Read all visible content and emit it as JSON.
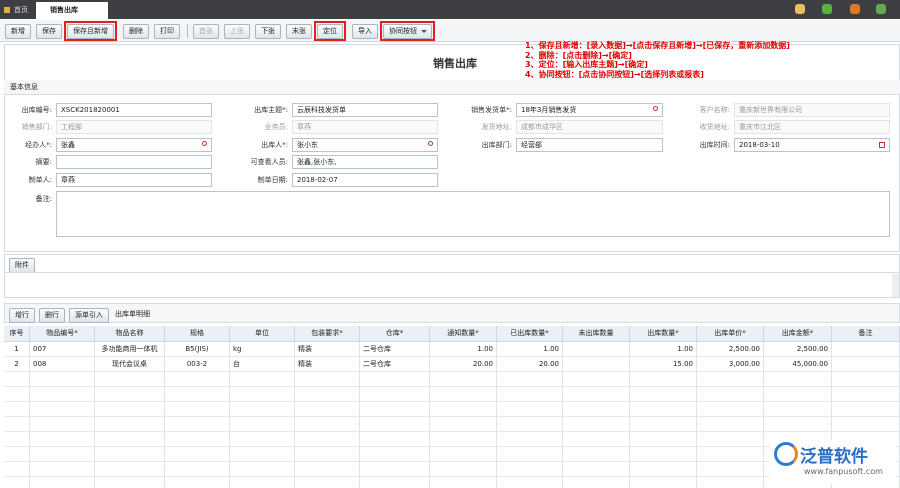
{
  "tabs": [
    "首页",
    "销售出库"
  ],
  "toolbar": [
    {
      "label": "新增"
    },
    {
      "label": "保存"
    },
    {
      "label": "保存且新增",
      "highlight": true
    },
    {
      "label": "删除"
    },
    {
      "label": "打印"
    },
    {
      "label": "首张",
      "disabled": true,
      "group_start": true
    },
    {
      "label": "上张",
      "disabled": true
    },
    {
      "label": "下张"
    },
    {
      "label": "末张"
    },
    {
      "label": "定位",
      "highlight": true
    },
    {
      "label": "导入"
    },
    {
      "label": "协同按钮",
      "highlight": true,
      "dropdown": true
    }
  ],
  "annotations": [
    "1、保存且新增：[录入数据]→[点击保存且新增]→[已保存，重新添加数据]",
    "2、删除：[点击删除]→[确定]",
    "3、定位：[输入出库主题]→[确定]",
    "4、协同按钮：[点击协同按钮]→[选择列表或报表]"
  ],
  "title": "销售出库",
  "basic_info": {
    "heading": "基本信息",
    "rows": [
      [
        {
          "label": "出库编号:",
          "value": "XSCK201820001"
        },
        {
          "label": "出库主题*:",
          "value": "云辰科技发货单"
        },
        {
          "label": "销售发货单*:",
          "value": "18年3月销售发货",
          "icon": "search"
        },
        {
          "label": "客户名称:",
          "value": "重庆新世界有限公司",
          "disabled": true
        }
      ],
      [
        {
          "label": "销售部门:",
          "value": "工程部",
          "disabled": true
        },
        {
          "label": "业务员:",
          "value": "章燕",
          "disabled": true
        },
        {
          "label": "发货地址:",
          "value": "成都市成华区",
          "disabled": true
        },
        {
          "label": "收货地址:",
          "value": "重庆市江北区",
          "disabled": true
        }
      ],
      [
        {
          "label": "经办人*:",
          "value": "张鑫",
          "icon": "search"
        },
        {
          "label": "出库人*:",
          "value": "张小东",
          "icon": "search"
        },
        {
          "label": "出库部门:",
          "value": "经营部"
        },
        {
          "label": "出库时间:",
          "value": "2018-03-10",
          "icon": "calendar"
        }
      ],
      [
        {
          "label": "摘要:"
        },
        {
          "label": "可查看人员:",
          "value": "张鑫,张小东,"
        }
      ],
      [
        {
          "label": "制单人:",
          "value": "章燕"
        },
        {
          "label": "制单日期:",
          "value": "2018-02-07"
        }
      ]
    ],
    "remark_label": "备注:"
  },
  "attachment_button": "附件",
  "detail": {
    "buttons": [
      "增行",
      "删行",
      "源单引入"
    ],
    "label": "出库单明细",
    "columns": [
      "序号",
      "物品编号*",
      "物品名称",
      "规格",
      "单位",
      "包装要求*",
      "仓库*",
      "通知数量*",
      "已出库数量*",
      "未出库数量",
      "出库数量*",
      "出库单价*",
      "出库金额*",
      "备注"
    ],
    "rows": [
      [
        "1",
        "007",
        "多功能商用一体机",
        "B5(JIS)",
        "kg",
        "精装",
        "二号仓库",
        "1.00",
        "1.00",
        null,
        "1.00",
        "2,500.00",
        "2,500.00",
        null
      ],
      [
        "2",
        "008",
        "现代会议桌",
        "003-2",
        "台",
        "精装",
        "二号仓库",
        "20.00",
        "20.00",
        null,
        "15.00",
        "3,000.00",
        "45,000.00",
        null
      ]
    ]
  },
  "logo": {
    "name": "泛普软件",
    "url": "www.fanpusoft.com"
  }
}
